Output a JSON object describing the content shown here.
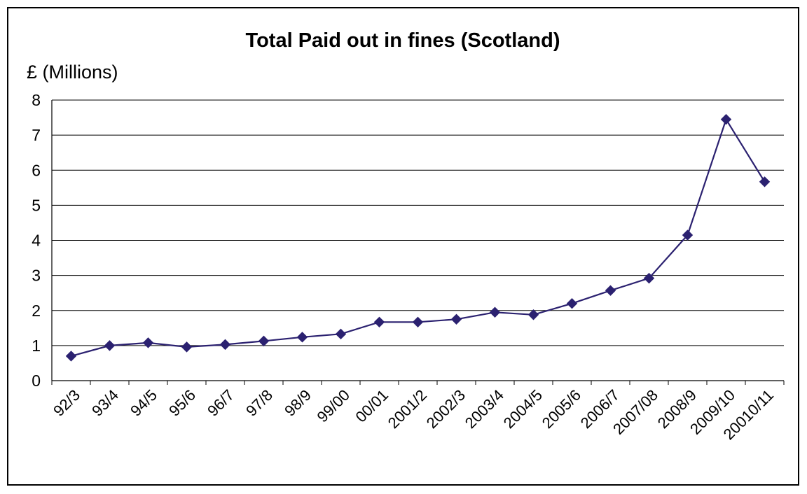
{
  "chart_data": {
    "type": "line",
    "title": "Total Paid out in fines (Scotland)",
    "ylabel": "£ (Millions)",
    "xlabel": "",
    "ylim": [
      0,
      8
    ],
    "yticks": [
      "0",
      "1",
      "2",
      "3",
      "4",
      "5",
      "6",
      "7",
      "8"
    ],
    "grid": true,
    "legend": "none",
    "categories": [
      "92/3",
      "93/4",
      "94/5",
      "95/6",
      "96/7",
      "97/8",
      "98/9",
      "99/00",
      "00/01",
      "2001/2",
      "2002/3",
      "2003/4",
      "2004/5",
      "2005/6",
      "2006/7",
      "2007/08",
      "2008/9",
      "2009/10",
      "20010/11"
    ],
    "series": [
      {
        "values": [
          0.7,
          1.0,
          1.08,
          0.96,
          1.03,
          1.13,
          1.24,
          1.33,
          1.67,
          1.67,
          1.75,
          1.95,
          1.88,
          2.2,
          2.57,
          2.92,
          4.15,
          7.45,
          5.67
        ],
        "color": "#2b2170",
        "marker": "diamond"
      }
    ]
  }
}
